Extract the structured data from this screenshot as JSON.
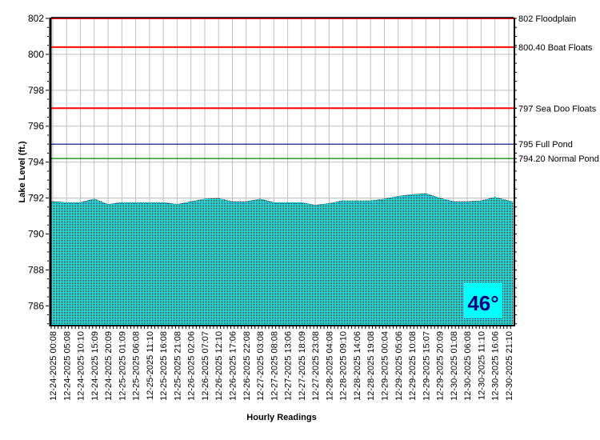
{
  "chart_data": {
    "type": "area",
    "title": "",
    "xlabel": "Hourly Readings",
    "ylabel": "Lake Level (ft.)",
    "ylim": [
      784.9,
      802
    ],
    "yticks": [
      786,
      788,
      790,
      792,
      794,
      796,
      798,
      800,
      802
    ],
    "grid": true,
    "x": [
      "12-24-2025 00:08",
      "12-24-2025 05:08",
      "12-24-2025 10:10",
      "12-24-2025 15:09",
      "12-24-2025 20:09",
      "12-25-2025 01:09",
      "12-25-2025 06:08",
      "12-25-2025 11:10",
      "12-25-2025 16:08",
      "12-25-2025 21:08",
      "12-26-2025 02:06",
      "12-26-2025 07:07",
      "12-26-2025 12:10",
      "12-26-2025 17:06",
      "12-26-2025 22:08",
      "12-27-2025 03:08",
      "12-27-2025 08:08",
      "12-27-2025 13:06",
      "12-27-2025 18:09",
      "12-27-2025 23:08",
      "12-28-2025 04:08",
      "12-28-2025 09:10",
      "12-28-2025 14:06",
      "12-28-2025 19:08",
      "12-29-2025 00:04",
      "12-29-2025 05:06",
      "12-29-2025 10:08",
      "12-29-2025 15:07",
      "12-29-2025 20:09",
      "12-30-2025 01:08",
      "12-30-2025 06:08",
      "12-30-2025 11:10",
      "12-30-2025 16:06",
      "12-30-2025 21:10"
    ],
    "series": [
      {
        "values": [
          791.8,
          791.75,
          791.75,
          791.95,
          791.65,
          791.75,
          791.75,
          791.75,
          791.75,
          791.65,
          791.8,
          791.95,
          791.98,
          791.8,
          791.8,
          791.95,
          791.75,
          791.75,
          791.75,
          791.6,
          791.7,
          791.85,
          791.85,
          791.85,
          791.95,
          792.1,
          792.2,
          792.25,
          792.0,
          791.8,
          791.8,
          791.85,
          792.05,
          791.85
        ],
        "color": "#00ffff"
      }
    ],
    "reference_lines": [
      {
        "value": 802,
        "label": "802 Floodplain",
        "color": "#ff0000"
      },
      {
        "value": 800.4,
        "label": "800.40 Boat Floats",
        "color": "#ff0000"
      },
      {
        "value": 797,
        "label": "797 Sea Doo Floats",
        "color": "#ff0000"
      },
      {
        "value": 795,
        "label": "795 Full Pond",
        "color": "#000080"
      },
      {
        "value": 794.2,
        "label": "794.20 Normal Pond",
        "color": "#008000"
      }
    ],
    "annotation": {
      "text": "46°",
      "color": "#000080",
      "background": "#00ffff"
    }
  }
}
